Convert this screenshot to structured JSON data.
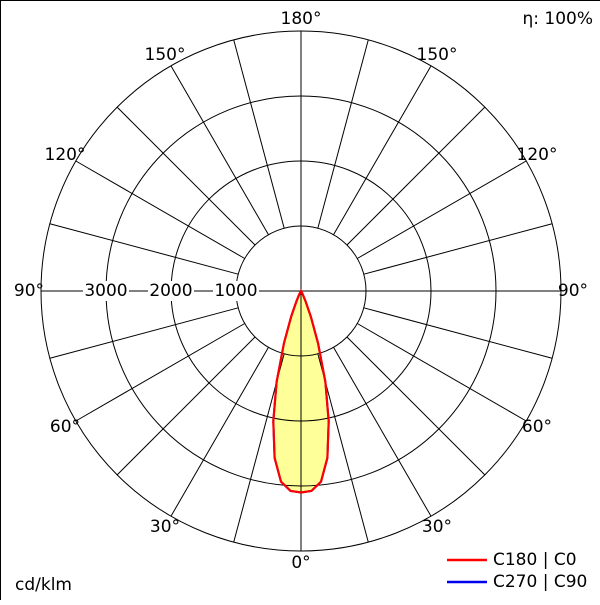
{
  "frame": {
    "background": "#ffffff",
    "border_color": "#000000",
    "grid_color": "#000000"
  },
  "header": {
    "efficiency": "η: 100%"
  },
  "footer": {
    "units_label": "cd/klm"
  },
  "polar": {
    "ring_labels": [
      "3000",
      "2000",
      "1000"
    ],
    "angle_labels": [
      "180°",
      "150°",
      "150°",
      "120°",
      "120°",
      "90°",
      "90°",
      "60°",
      "60°",
      "30°",
      "30°",
      "0°"
    ]
  },
  "chart_data": {
    "type": "polar-line",
    "units": "cd/klm",
    "efficiency": "η: 100%",
    "ring_values": [
      1000,
      2000,
      3000
    ],
    "angle_tick_step_deg": 15,
    "angle_labels_deg": [
      0,
      30,
      60,
      90,
      120,
      150,
      180
    ],
    "fill_color": "#ffff99",
    "series": [
      {
        "name": "C180 | C0",
        "color": "#ff0000",
        "gamma_deg": [
          0,
          3,
          6,
          9,
          12,
          15,
          18,
          21,
          24,
          27,
          30,
          45,
          60,
          75,
          90
        ],
        "values": [
          3100,
          3080,
          2950,
          2600,
          2050,
          1450,
          850,
          420,
          170,
          60,
          15,
          0,
          0,
          0,
          0
        ]
      },
      {
        "name": "C270 | C90",
        "color": "#0000ee",
        "gamma_deg": [
          0,
          3,
          6,
          9,
          12,
          15,
          18,
          21,
          24,
          27,
          30,
          45,
          60,
          75,
          90
        ],
        "values": [
          3100,
          3080,
          2950,
          2600,
          2050,
          1450,
          850,
          420,
          170,
          60,
          15,
          0,
          0,
          0,
          0
        ]
      }
    ]
  }
}
